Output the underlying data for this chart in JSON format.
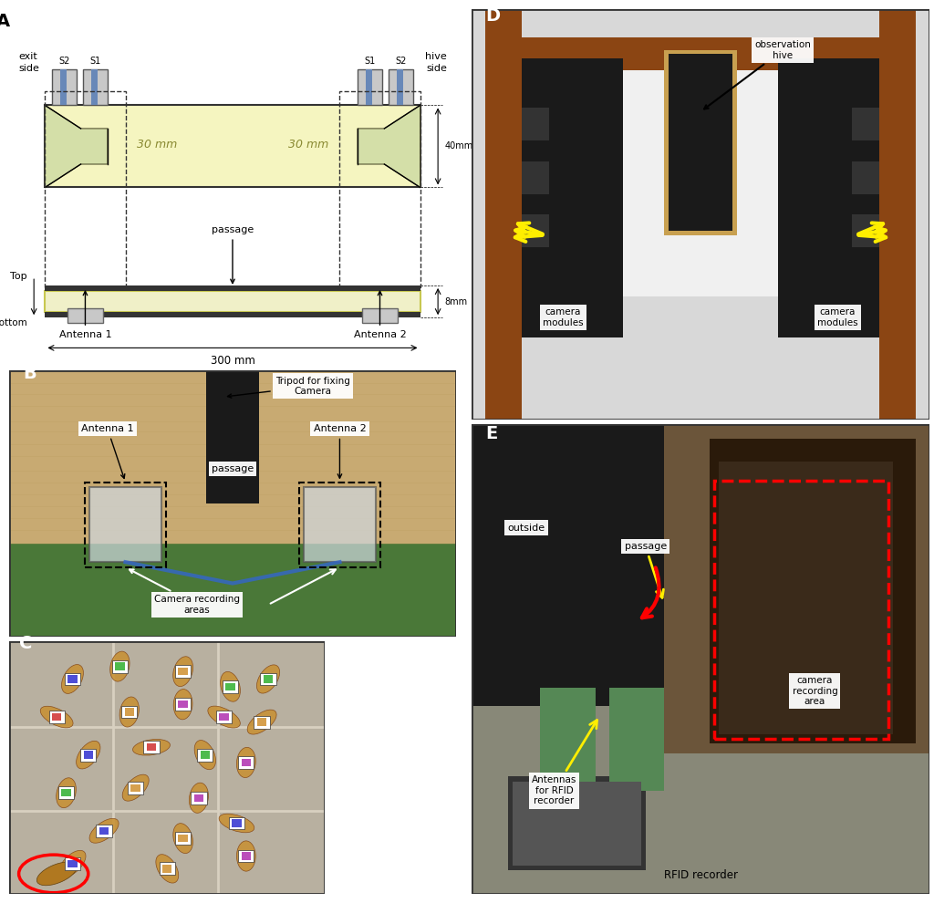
{
  "layout": {
    "panel_A": [
      0.01,
      0.595,
      0.478,
      0.395
    ],
    "panel_B": [
      0.01,
      0.295,
      0.478,
      0.295
    ],
    "panel_C": [
      0.01,
      0.01,
      0.338,
      0.28
    ],
    "panel_D": [
      0.505,
      0.535,
      0.49,
      0.455
    ],
    "panel_E": [
      0.505,
      0.01,
      0.49,
      0.52
    ]
  },
  "colors": {
    "passage_fill": "#f5f5c0",
    "constriction_fill": "#d4dfa8",
    "antenna_gray": "#c8c8c8",
    "antenna_blue": "#6888b8",
    "bottom_strip_fill": "#f0f0c8",
    "bottom_frame": "#c8c850",
    "diagram_border": "#333333",
    "white": "#ffffff",
    "figure_bg": "#ffffff",
    "photo_B_wood": "#d4b878",
    "photo_B_green": "#5a8040",
    "photo_C_bg": "#b0a878",
    "photo_D_bg": "#606068",
    "photo_E_bg": "#585860"
  },
  "annotations": {
    "A_exit_side": "exit\nside",
    "A_hive_side": "hive\nside",
    "A_30mm_left": "30 mm",
    "A_30mm_right": "30 mm",
    "A_40mm": "40mm",
    "A_8mm": "8mm",
    "A_300mm": "300 mm",
    "A_passage": "passage",
    "A_antenna1": "Antenna 1",
    "A_antenna2": "Antenna 2",
    "A_S2_left": "S2",
    "A_S1_left": "S1",
    "A_S1_right": "S1",
    "A_S2_right": "S2",
    "A_top": "Top",
    "A_bottom": "bottom",
    "B_tripod": "Tripod for fixing\nCamera",
    "B_antenna1": "Antenna 1",
    "B_antenna2": "Antenna 2",
    "B_passage": "passage",
    "B_camera": "Camera recording\nareas",
    "D_obs_hive": "observation\nhive",
    "D_cam_left": "camera\nmodules",
    "D_cam_right": "camera\nmodules",
    "E_outside": "outside",
    "E_passage": "passage",
    "E_antennas": "Antennas\nfor RFID\nrecorder",
    "E_cam_area": "camera\nrecording\narea",
    "E_rfid": "RFID recorder"
  }
}
